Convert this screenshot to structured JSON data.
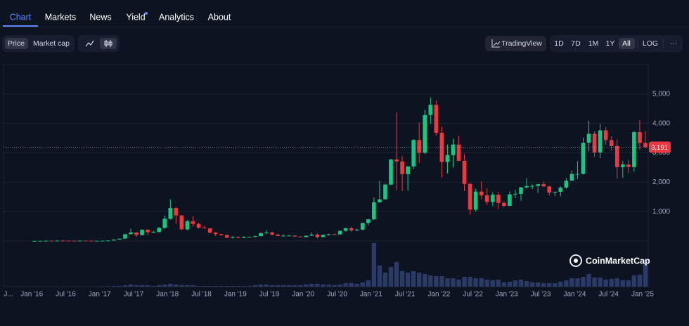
{
  "nav": {
    "tabs": [
      "Chart",
      "Markets",
      "News",
      "Yield",
      "Analytics",
      "About"
    ]
  },
  "toolbar": {
    "metric": [
      "Price",
      "Market cap"
    ],
    "tradingview": "TradingView",
    "ranges": [
      "1D",
      "7D",
      "1M",
      "1Y",
      "All"
    ],
    "log": "LOG",
    "more": "···"
  },
  "watermark": "CoinMarketCap",
  "chart_data": {
    "type": "candlestick",
    "x": [
      "2016-01",
      "2016-02",
      "2016-03",
      "2016-04",
      "2016-05",
      "2016-06",
      "2016-07",
      "2016-08",
      "2016-09",
      "2016-10",
      "2016-11",
      "2016-12",
      "2017-01",
      "2017-02",
      "2017-03",
      "2017-04",
      "2017-05",
      "2017-06",
      "2017-07",
      "2017-08",
      "2017-09",
      "2017-10",
      "2017-11",
      "2017-12",
      "2018-01",
      "2018-02",
      "2018-03",
      "2018-04",
      "2018-05",
      "2018-06",
      "2018-07",
      "2018-08",
      "2018-09",
      "2018-10",
      "2018-11",
      "2018-12",
      "2019-01",
      "2019-02",
      "2019-03",
      "2019-04",
      "2019-05",
      "2019-06",
      "2019-07",
      "2019-08",
      "2019-09",
      "2019-10",
      "2019-11",
      "2019-12",
      "2020-01",
      "2020-02",
      "2020-03",
      "2020-04",
      "2020-05",
      "2020-06",
      "2020-07",
      "2020-08",
      "2020-09",
      "2020-10",
      "2020-11",
      "2020-12",
      "2021-01",
      "2021-02",
      "2021-03",
      "2021-04",
      "2021-05",
      "2021-06",
      "2021-07",
      "2021-08",
      "2021-09",
      "2021-10",
      "2021-11",
      "2021-12",
      "2022-01",
      "2022-02",
      "2022-03",
      "2022-04",
      "2022-05",
      "2022-06",
      "2022-07",
      "2022-08",
      "2022-09",
      "2022-10",
      "2022-11",
      "2022-12",
      "2023-01",
      "2023-02",
      "2023-03",
      "2023-04",
      "2023-05",
      "2023-06",
      "2023-07",
      "2023-08",
      "2023-09",
      "2023-10",
      "2023-11",
      "2023-12",
      "2024-01",
      "2024-02",
      "2024-03",
      "2024-04",
      "2024-05",
      "2024-06",
      "2024-07",
      "2024-08",
      "2024-09",
      "2024-10",
      "2024-11",
      "2024-12",
      "2025-01"
    ],
    "open": [
      1,
      2,
      6,
      11,
      9,
      14,
      13,
      12,
      11,
      13,
      11,
      8,
      8,
      11,
      16,
      50,
      80,
      230,
      290,
      200,
      385,
      300,
      305,
      445,
      755,
      1120,
      870,
      395,
      670,
      580,
      455,
      430,
      285,
      235,
      200,
      115,
      135,
      107,
      136,
      141,
      162,
      268,
      292,
      218,
      172,
      180,
      183,
      152,
      130,
      180,
      218,
      133,
      206,
      231,
      225,
      346,
      435,
      360,
      386,
      615,
      737,
      1314,
      1417,
      1919,
      2773,
      2707,
      2275,
      2536,
      3434,
      3001,
      4288,
      4631,
      3683,
      2688,
      2922,
      3282,
      2728,
      1942,
      1067,
      1679,
      1553,
      1328,
      1572,
      1295,
      1196,
      1585,
      1605,
      1822,
      1870,
      1874,
      1934,
      1857,
      1646,
      1671,
      1815,
      2052,
      2282,
      2283,
      3340,
      3647,
      3012,
      3762,
      3433,
      3232,
      2513,
      2602,
      2516,
      3703,
      3337
    ],
    "high": [
      3,
      7,
      15,
      12,
      15,
      21,
      15,
      12,
      14,
      14,
      11,
      9,
      11,
      16,
      55,
      82,
      230,
      420,
      300,
      390,
      400,
      350,
      480,
      860,
      1420,
      1160,
      880,
      710,
      840,
      620,
      510,
      435,
      310,
      235,
      220,
      160,
      160,
      165,
      150,
      185,
      285,
      365,
      310,
      240,
      225,
      200,
      195,
      155,
      185,
      290,
      250,
      225,
      245,
      250,
      350,
      445,
      490,
      420,
      620,
      755,
      1475,
      2040,
      1945,
      2790,
      4380,
      2890,
      2550,
      3470,
      4030,
      4460,
      4890,
      4780,
      3900,
      3280,
      3480,
      3580,
      2960,
      1970,
      1780,
      2020,
      1790,
      1660,
      1680,
      1350,
      1680,
      1740,
      1840,
      2140,
      1930,
      1930,
      2020,
      1880,
      1680,
      1860,
      2140,
      2400,
      2720,
      3520,
      4090,
      3730,
      3980,
      3880,
      3560,
      3460,
      2730,
      2760,
      3740,
      4110,
      3740
    ],
    "low": [
      1,
      2,
      6,
      7,
      9,
      11,
      10,
      10,
      11,
      10,
      8,
      7,
      8,
      10,
      16,
      45,
      78,
      230,
      140,
      190,
      200,
      280,
      290,
      410,
      720,
      580,
      370,
      370,
      500,
      420,
      425,
      250,
      170,
      190,
      100,
      80,
      100,
      105,
      130,
      135,
      160,
      230,
      190,
      165,
      155,
      160,
      140,
      120,
      125,
      175,
      90,
      125,
      190,
      215,
      220,
      320,
      310,
      335,
      375,
      530,
      715,
      1300,
      1415,
      1900,
      1730,
      1700,
      1720,
      2450,
      2650,
      2970,
      3990,
      3580,
      2160,
      2300,
      2500,
      2720,
      1700,
      880,
      1000,
      1420,
      1220,
      1190,
      1080,
      1150,
      1190,
      1460,
      1370,
      1780,
      1760,
      1630,
      1840,
      1550,
      1530,
      1520,
      1780,
      2050,
      2100,
      2260,
      3050,
      2860,
      2820,
      3270,
      3080,
      2120,
      2150,
      2310,
      2360,
      3100,
      3150
    ],
    "close": [
      2,
      6,
      11,
      9,
      14,
      13,
      12,
      11,
      13,
      11,
      8,
      8,
      11,
      16,
      50,
      80,
      230,
      290,
      200,
      385,
      300,
      305,
      445,
      755,
      1120,
      870,
      395,
      670,
      580,
      455,
      430,
      285,
      235,
      200,
      115,
      135,
      107,
      136,
      141,
      162,
      268,
      292,
      218,
      172,
      180,
      183,
      152,
      130,
      180,
      218,
      133,
      206,
      231,
      225,
      346,
      435,
      360,
      386,
      615,
      737,
      1314,
      1417,
      1919,
      2773,
      2707,
      2275,
      2536,
      3434,
      3001,
      4288,
      4631,
      3683,
      2688,
      2922,
      3282,
      2728,
      1942,
      1067,
      1679,
      1553,
      1328,
      1572,
      1295,
      1196,
      1585,
      1605,
      1822,
      1870,
      1874,
      1934,
      1857,
      1646,
      1671,
      1815,
      2052,
      2282,
      2283,
      3340,
      3647,
      3012,
      3762,
      3433,
      3232,
      2513,
      2602,
      2516,
      3703,
      3337,
      3191
    ],
    "volume": [
      0.1,
      0.1,
      0.1,
      0.1,
      0.1,
      0.1,
      0.1,
      0.1,
      0.1,
      0.1,
      0.1,
      0.1,
      0.5,
      0.5,
      1,
      1,
      2,
      3,
      2,
      2,
      2,
      1,
      2,
      3,
      4,
      3,
      2,
      2,
      2,
      1,
      1,
      1,
      1,
      1,
      1,
      1,
      1,
      1,
      1,
      2,
      3,
      3,
      2,
      2,
      2,
      2,
      2,
      2,
      3,
      4,
      4,
      3,
      3,
      2,
      3,
      5,
      5,
      4,
      6,
      9,
      62,
      30,
      20,
      28,
      35,
      22,
      20,
      22,
      20,
      18,
      16,
      15,
      15,
      12,
      12,
      10,
      14,
      14,
      12,
      12,
      10,
      9,
      10,
      6,
      7,
      9,
      10,
      8,
      6,
      6,
      5,
      5,
      5,
      7,
      9,
      12,
      12,
      14,
      18,
      13,
      13,
      10,
      11,
      12,
      9,
      9,
      16,
      17,
      38
    ],
    "up_color": "#16c784",
    "down_color": "#ea3943",
    "volume_color": "#2b3a66",
    "xlim": [
      "2015-08",
      "2025-02"
    ],
    "xticks": [
      {
        "value": "2015-07",
        "label": "J..."
      },
      {
        "value": "2016-01",
        "label": "Jan '16"
      },
      {
        "value": "2016-07",
        "label": "Jul '16"
      },
      {
        "value": "2017-01",
        "label": "Jan '17"
      },
      {
        "value": "2017-07",
        "label": "Jul '17"
      },
      {
        "value": "2018-01",
        "label": "Jan '18"
      },
      {
        "value": "2018-07",
        "label": "Jul '18"
      },
      {
        "value": "2019-01",
        "label": "Jan '19"
      },
      {
        "value": "2019-07",
        "label": "Jul '19"
      },
      {
        "value": "2020-01",
        "label": "Jan '20"
      },
      {
        "value": "2020-07",
        "label": "Jul '20"
      },
      {
        "value": "2021-01",
        "label": "Jan '21"
      },
      {
        "value": "2021-07",
        "label": "Jul '21"
      },
      {
        "value": "2022-01",
        "label": "Jan '22"
      },
      {
        "value": "2022-07",
        "label": "Jul '22"
      },
      {
        "value": "2023-01",
        "label": "Jan '23"
      },
      {
        "value": "2023-07",
        "label": "Jul '23"
      },
      {
        "value": "2024-01",
        "label": "Jan '24"
      },
      {
        "value": "2024-07",
        "label": "Jul '24"
      },
      {
        "value": "2025-01",
        "label": "Jan '25"
      }
    ],
    "ylim": [
      0,
      6000
    ],
    "yticks": [
      {
        "value": 1000,
        "label": "1,000"
      },
      {
        "value": 2000,
        "label": "2,000"
      },
      {
        "value": 3000,
        "label": "3,000"
      },
      {
        "value": 4000,
        "label": "4,000"
      },
      {
        "value": 5000,
        "label": "5,000"
      }
    ],
    "volume_lim": [
      0,
      65
    ],
    "current_price": {
      "value": 3191,
      "label": "3,191"
    },
    "grid": true
  }
}
